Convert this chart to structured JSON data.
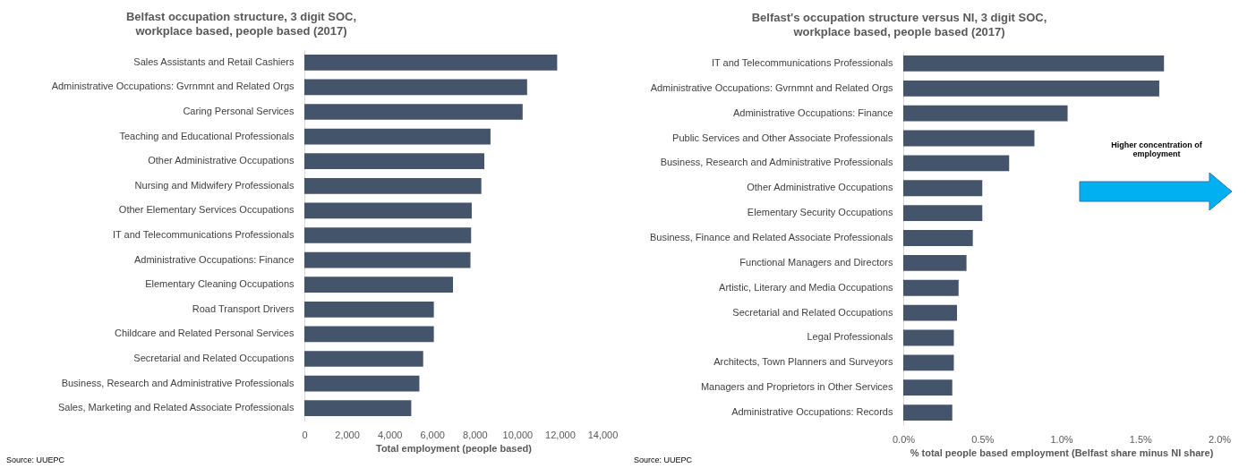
{
  "chart_data": [
    {
      "type": "bar",
      "orientation": "horizontal",
      "title": "Belfast occupation  structure,  3 digit SOC,\nworkplace based, people based (2017)",
      "xlabel": "Total employment (people based)",
      "categories": [
        "Sales Assistants and Retail Cashiers",
        "Administrative Occupations: Gvrnmnt and Related Orgs",
        "Caring Personal Services",
        "Teaching and Educational Professionals",
        "Other Administrative Occupations",
        "Nursing and Midwifery Professionals",
        "Other Elementary Services Occupations",
        "IT and Telecommunications Professionals",
        "Administrative Occupations: Finance",
        "Elementary Cleaning Occupations",
        "Road Transport Drivers",
        "Childcare and Related Personal Services",
        "Secretarial and Related Occupations",
        "Business, Research and Administrative Professionals",
        "Sales, Marketing and Related Associate Professionals"
      ],
      "values": [
        11870,
        10460,
        10250,
        8740,
        8450,
        8310,
        7860,
        7830,
        7800,
        6980,
        6080,
        6080,
        5580,
        5400,
        5020
      ],
      "color": "#44546a",
      "xlim": [
        0,
        14000
      ],
      "xticks": [
        0,
        {
          "value": 2000,
          "label": "2,000"
        },
        {
          "value": 4000,
          "label": "4,000"
        },
        {
          "value": 6000,
          "label": "6,000"
        },
        {
          "value": 8000,
          "label": "8,000"
        },
        {
          "value": 10000,
          "label": "10,000"
        },
        {
          "value": 12000,
          "label": "12,000"
        },
        {
          "value": 14000,
          "label": "14,000"
        }
      ],
      "annotations": [
        "Source: UUEPC"
      ]
    },
    {
      "type": "bar",
      "orientation": "horizontal",
      "title": "Belfast's occupation structure versus NI,  3 digit SOC,\nworkplace based, people based (2017)",
      "xlabel": "% total people based employment (Belfast share minus NI share)",
      "categories": [
        "IT and Telecommunications Professionals",
        "Administrative Occupations: Gvrnmnt and Related Orgs",
        "Administrative Occupations: Finance",
        "Public Services and Other Associate Professionals",
        "Business, Research and Administrative Professionals",
        "Other Administrative Occupations",
        "Elementary Security Occupations",
        "Business, Finance and Related Associate Professionals",
        "Functional Managers and Directors",
        "Artistic, Literary and Media Occupations",
        "Secretarial and Related Occupations",
        "Legal Professionals",
        "Architects, Town Planners and Surveyors",
        "Managers and Proprietors in Other Services",
        "Administrative Occupations: Records"
      ],
      "values": [
        1.65,
        1.62,
        1.04,
        0.83,
        0.67,
        0.5,
        0.5,
        0.44,
        0.4,
        0.35,
        0.34,
        0.32,
        0.32,
        0.31,
        0.31
      ],
      "color": "#44546a",
      "xlim": [
        0,
        2
      ],
      "xticks": [
        {
          "value": 0,
          "label": "0.0%"
        },
        {
          "value": 0.5,
          "label": "0.5%"
        },
        {
          "value": 1,
          "label": "1.0%"
        },
        {
          "value": 1.5,
          "label": "1.5%"
        },
        {
          "value": 2,
          "label": "2.0%"
        }
      ],
      "annotations": [
        "Source: UUEPC",
        "Higher concentration of employment"
      ]
    }
  ]
}
